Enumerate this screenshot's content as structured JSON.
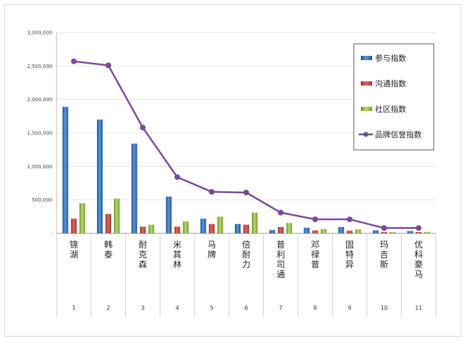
{
  "chart_data": {
    "type": "bar",
    "title": "",
    "xlabel": "",
    "ylabel": "",
    "ylim": [
      0,
      3000000
    ],
    "yticks": [
      "3,000,000",
      "2,500,000",
      "2,000,000",
      "1,500,000",
      "1,000,000",
      "500,000",
      "-"
    ],
    "ytick_values": [
      3000000,
      2500000,
      2000000,
      1500000,
      1000000,
      500000,
      0
    ],
    "categories": [
      "锦湖",
      "韩泰",
      "耐克森",
      "米其林",
      "马牌",
      "倍耐力",
      "普利司通",
      "邓禄普",
      "固特异",
      "玛吉斯",
      "优科豪马"
    ],
    "category_index": [
      "1",
      "2",
      "3",
      "4",
      "5",
      "6",
      "7",
      "8",
      "9",
      "10",
      "11"
    ],
    "grid": true,
    "legend_position": "top-right",
    "series": [
      {
        "name": "参与指数",
        "kind": "bar",
        "color": "#2e6fbd",
        "values": [
          1890000,
          1700000,
          1340000,
          550000,
          220000,
          140000,
          50000,
          85000,
          95000,
          45000,
          35000
        ]
      },
      {
        "name": "沟通指数",
        "kind": "bar",
        "color": "#c0413a",
        "values": [
          220000,
          290000,
          100000,
          100000,
          140000,
          130000,
          95000,
          45000,
          40000,
          20000,
          20000
        ]
      },
      {
        "name": "社区指数",
        "kind": "bar",
        "color": "#8db83f",
        "values": [
          450000,
          520000,
          130000,
          180000,
          250000,
          310000,
          155000,
          65000,
          60000,
          20000,
          20000
        ]
      },
      {
        "name": "品牌信誉指数",
        "kind": "line",
        "color": "#7c4a9a",
        "values": [
          2570000,
          2510000,
          1580000,
          840000,
          620000,
          610000,
          310000,
          210000,
          210000,
          80000,
          80000
        ]
      }
    ]
  }
}
